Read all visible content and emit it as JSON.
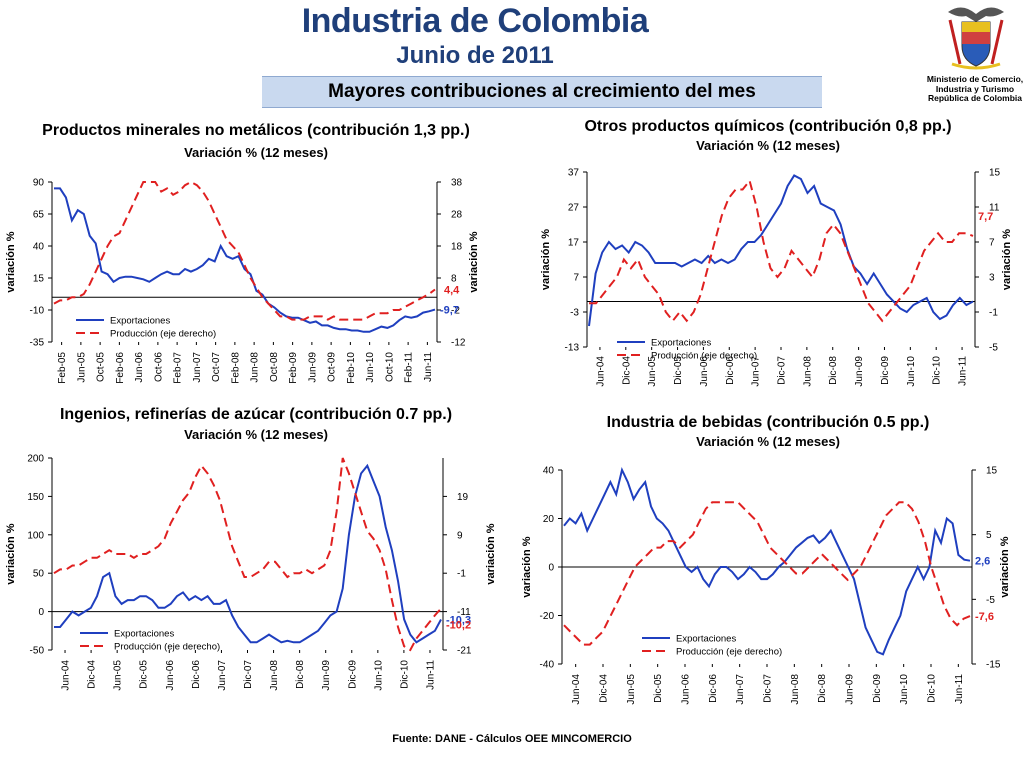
{
  "header": {
    "title": "Industria de Colombia",
    "subtitle": "Junio de 2011",
    "banner": "Mayores contribuciones al crecimiento del mes",
    "ministry": [
      "Ministerio de Comercio,",
      "Industria y Turismo",
      "República de Colombia"
    ]
  },
  "footer": "Fuente: DANE - Cálculos OEE MINCOMERCIO",
  "colors": {
    "exports": "#1f3fbf",
    "production": "#e02020",
    "title": "#1f3f7a",
    "banner": "#c9d9ef"
  },
  "chart_data": [
    {
      "type": "line",
      "title": "Productos minerales no metálicos (contribución 1,3 pp.)",
      "subtitle": "Variación % (12 meses)",
      "ylabel_left": "variación %",
      "ylabel_right": "variación %",
      "x_ticks": [
        "Feb-05",
        "Jun-05",
        "Oct-05",
        "Feb-06",
        "Jun-06",
        "Oct-06",
        "Feb-07",
        "Jun-07",
        "Oct-07",
        "Feb-08",
        "Jun-08",
        "Oct-08",
        "Feb-09",
        "Jun-09",
        "Oct-09",
        "Feb-10",
        "Jun-10",
        "Oct-10",
        "Feb-11",
        "Jun-11"
      ],
      "ylim_left": [
        -35,
        90
      ],
      "yticks_left": [
        90,
        65,
        40,
        15,
        -10,
        -35
      ],
      "ylim_right": [
        -12,
        38
      ],
      "yticks_right": [
        38,
        28,
        18,
        8,
        -2,
        -12
      ],
      "legend": [
        "Exportaciones",
        "Producción (eje derecho)"
      ],
      "end_labels": {
        "left": "-9,7",
        "right": "4,4"
      },
      "series": [
        {
          "name": "Exportaciones",
          "axis": "left",
          "values": [
            85,
            85,
            78,
            60,
            68,
            65,
            48,
            42,
            20,
            18,
            12,
            15,
            16,
            16,
            15,
            14,
            12,
            15,
            18,
            20,
            18,
            18,
            22,
            20,
            22,
            25,
            30,
            28,
            40,
            32,
            30,
            32,
            22,
            18,
            5,
            2,
            -5,
            -8,
            -12,
            -15,
            -16,
            -16,
            -18,
            -20,
            -19,
            -22,
            -22,
            -24,
            -25,
            -25,
            -26,
            -26,
            -27,
            -27,
            -25,
            -23,
            -24,
            -22,
            -18,
            -15,
            -16,
            -15,
            -12,
            -11,
            -9.7
          ]
        },
        {
          "name": "Producción (eje derecho)",
          "axis": "right",
          "values": [
            0,
            1,
            1,
            2,
            2,
            3,
            6,
            10,
            14,
            18,
            21,
            22,
            26,
            30,
            34,
            38,
            38,
            38,
            35,
            36,
            34,
            35,
            37,
            38,
            37,
            35,
            32,
            28,
            24,
            20,
            18,
            16,
            12,
            8,
            5,
            2,
            0,
            -2,
            -4,
            -4,
            -5,
            -5,
            -5,
            -4,
            -4,
            -4,
            -5,
            -4,
            -5,
            -5,
            -5,
            -5,
            -5,
            -4,
            -3,
            -3,
            -3,
            -2,
            -2,
            -1,
            0,
            1,
            2,
            3,
            4.4
          ]
        }
      ]
    },
    {
      "type": "line",
      "title": "Otros productos químicos (contribución 0,8 pp.)",
      "subtitle": "Variación % (12 meses)",
      "ylabel_left": "variación %",
      "ylabel_right": "variación %",
      "x_ticks": [
        "Jun-04",
        "Dic-04",
        "Jun-05",
        "Dic-05",
        "Jun-06",
        "Dic-06",
        "Jun-07",
        "Dic-07",
        "Jun-08",
        "Dic-08",
        "Jun-09",
        "Dic-09",
        "Jun-10",
        "Dic-10",
        "Jun-11"
      ],
      "ylim_left": [
        -13,
        37
      ],
      "yticks_left": [
        37,
        27,
        17,
        7,
        -3,
        -13
      ],
      "ylim_right": [
        -5,
        15
      ],
      "yticks_right": [
        15,
        11,
        7,
        3,
        -1,
        -5
      ],
      "legend": [
        "Exportaciones",
        "Producción (eje derecho)"
      ],
      "end_labels": {
        "left": "",
        "right": "7,7"
      },
      "series": [
        {
          "name": "Exportaciones",
          "axis": "left",
          "values": [
            -7,
            8,
            14,
            17,
            15,
            16,
            14,
            17,
            16,
            14,
            11,
            11,
            11,
            11,
            10,
            11,
            12,
            11,
            13,
            11,
            12,
            11,
            12,
            15,
            17,
            17,
            19,
            22,
            25,
            28,
            33,
            36,
            35,
            31,
            33,
            28,
            27,
            26,
            22,
            15,
            10,
            8,
            5,
            8,
            5,
            2,
            0,
            -2,
            -3,
            -1,
            0,
            1,
            -3,
            -5,
            -4,
            -1,
            1,
            -1,
            0
          ]
        },
        {
          "name": "Producción (eje derecho)",
          "axis": "right",
          "values": [
            0,
            0,
            1,
            2,
            3,
            5,
            4,
            5,
            3,
            2,
            1,
            -1,
            -2,
            -1,
            -2,
            -1,
            1,
            4,
            7,
            10,
            12,
            13,
            13,
            14,
            11,
            7,
            4,
            3,
            4,
            6,
            5,
            4,
            3,
            5,
            8,
            9,
            8,
            6,
            4,
            2,
            0,
            -1,
            -2,
            -1,
            0,
            1,
            2,
            4,
            6,
            7,
            8,
            7,
            7,
            8,
            8,
            7.7
          ]
        }
      ]
    },
    {
      "type": "line",
      "title": "Ingenios, refinerías de azúcar (contribución 0.7 pp.)",
      "subtitle": "Variación % (12 meses)",
      "ylabel_left": "variación %",
      "ylabel_right": "variación %",
      "x_ticks": [
        "Jun-04",
        "Dic-04",
        "Jun-05",
        "Dic-05",
        "Jun-06",
        "Dic-06",
        "Jun-07",
        "Dic-07",
        "Jun-08",
        "Dic-08",
        "Jun-09",
        "Dic-09",
        "Jun-10",
        "Dic-10",
        "Jun-11"
      ],
      "ylim_left": [
        -50,
        200
      ],
      "yticks_left": [
        200,
        150,
        100,
        50,
        0,
        -50
      ],
      "ylim_right": [
        -21,
        29
      ],
      "yticks_right": [
        19,
        9,
        -1,
        -11,
        -21
      ],
      "legend": [
        "Exportaciones",
        "Producción (eje derecho)"
      ],
      "end_labels": {
        "left": "-10,3",
        "right": "-10,2"
      },
      "series": [
        {
          "name": "Exportaciones",
          "axis": "left",
          "values": [
            -20,
            -20,
            -10,
            0,
            -5,
            0,
            5,
            20,
            45,
            50,
            20,
            10,
            15,
            15,
            20,
            20,
            15,
            5,
            5,
            10,
            20,
            25,
            15,
            20,
            15,
            20,
            10,
            10,
            15,
            -5,
            -20,
            -30,
            -40,
            -40,
            -35,
            -30,
            -35,
            -40,
            -38,
            -40,
            -40,
            -35,
            -30,
            -25,
            -15,
            -5,
            0,
            30,
            100,
            150,
            180,
            190,
            170,
            150,
            110,
            80,
            40,
            -10,
            -30,
            -40,
            -35,
            -30,
            -25,
            -10.3
          ]
        },
        {
          "name": "Producción (eje derecho)",
          "axis": "right",
          "values": [
            -1,
            0,
            0,
            1,
            1,
            2,
            3,
            3,
            4,
            5,
            4,
            4,
            4,
            3,
            4,
            4,
            5,
            6,
            8,
            12,
            15,
            18,
            20,
            24,
            27,
            25,
            22,
            18,
            12,
            6,
            2,
            -2,
            -2,
            -1,
            0,
            2,
            2,
            0,
            -2,
            -1,
            -1,
            0,
            -1,
            0,
            1,
            5,
            15,
            29,
            25,
            20,
            15,
            10,
            8,
            5,
            0,
            -8,
            -15,
            -20,
            -21,
            -18,
            -16,
            -14,
            -12,
            -10.2
          ]
        }
      ]
    },
    {
      "type": "line",
      "title": "Industria de bebidas (contribución 0.5 pp.)",
      "subtitle": "Variación % (12 meses)",
      "ylabel_left": "variación %",
      "ylabel_right": "variación %",
      "x_ticks": [
        "Jun-04",
        "Dic-04",
        "Jun-05",
        "Dic-05",
        "Jun-06",
        "Dic-06",
        "Jun-07",
        "Dic-07",
        "Jun-08",
        "Dic-08",
        "Jun-09",
        "Dic-09",
        "Jun-10",
        "Dic-10",
        "Jun-11"
      ],
      "ylim_left": [
        -40,
        40
      ],
      "yticks_left": [
        40,
        20,
        0,
        -20,
        -40
      ],
      "ylim_right": [
        -15,
        15
      ],
      "yticks_right": [
        15,
        5,
        -5,
        -15
      ],
      "legend": [
        "Exportaciones",
        "Producción (eje derecho)"
      ],
      "end_labels": {
        "left": "2,6",
        "right": "-7,6"
      },
      "series": [
        {
          "name": "Exportaciones",
          "axis": "left",
          "values": [
            17,
            20,
            18,
            22,
            15,
            20,
            25,
            30,
            35,
            30,
            40,
            35,
            28,
            32,
            35,
            25,
            20,
            18,
            15,
            10,
            5,
            0,
            -2,
            0,
            -5,
            -8,
            -3,
            0,
            0,
            -2,
            -5,
            -3,
            0,
            -2,
            -5,
            -5,
            -3,
            0,
            2,
            5,
            8,
            10,
            12,
            13,
            10,
            12,
            15,
            10,
            5,
            0,
            -5,
            -15,
            -25,
            -30,
            -35,
            -36,
            -30,
            -25,
            -20,
            -10,
            -5,
            0,
            -5,
            0,
            15,
            10,
            20,
            18,
            5,
            3,
            2.6
          ]
        },
        {
          "name": "Producción (eje derecho)",
          "axis": "right",
          "values": [
            -9,
            -10,
            -11,
            -12,
            -12,
            -11,
            -10,
            -8,
            -6,
            -4,
            -2,
            0,
            1,
            2,
            3,
            3,
            4,
            4,
            3,
            4,
            5,
            7,
            9,
            10,
            10,
            10,
            10,
            10,
            9,
            8,
            7,
            5,
            3,
            2,
            1,
            0,
            -1,
            -1,
            0,
            1,
            2,
            1,
            0,
            -1,
            -2,
            -1,
            0,
            2,
            4,
            6,
            8,
            9,
            10,
            10,
            9,
            7,
            4,
            0,
            -3,
            -6,
            -8,
            -9,
            -8,
            -7.6
          ]
        }
      ]
    }
  ]
}
